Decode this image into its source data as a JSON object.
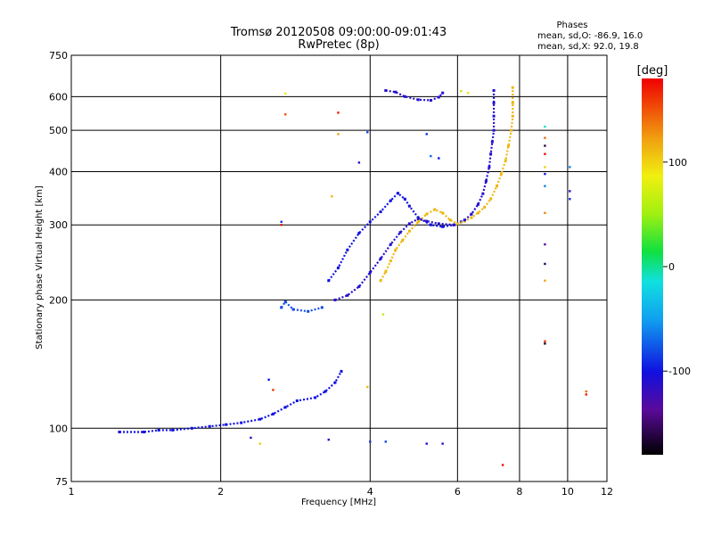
{
  "chart_data": {
    "type": "scatter",
    "title": "Tromsø 20120508 09:00:00-09:01:43",
    "subtitle": "RwPretec (8p)",
    "xlabel": "Frequency [MHz]",
    "ylabel": "Stationary phase Virtual Height [km]",
    "x_scale": "log",
    "y_scale": "log",
    "xlim": [
      1,
      12
    ],
    "ylim": [
      75,
      750
    ],
    "x_ticks": [
      1,
      2,
      4,
      6,
      8,
      10,
      12
    ],
    "y_ticks": [
      75,
      100,
      200,
      300,
      400,
      500,
      600,
      750
    ],
    "grid": true,
    "phases_box": {
      "heading": "Phases",
      "line_o": "mean, sd,O: -86.9, 16.0",
      "line_x": "mean, sd,X: 92.0, 19.8"
    },
    "colorbar": {
      "label": "[deg]",
      "min": -180,
      "max": 180,
      "ticks": [
        100,
        0,
        -100
      ]
    },
    "traces": [
      {
        "points": [
          [
            1.25,
            98
          ],
          [
            1.4,
            98
          ],
          [
            1.5,
            99
          ],
          [
            1.6,
            99
          ],
          [
            1.75,
            100
          ],
          [
            1.9,
            101
          ],
          [
            2.05,
            102
          ],
          [
            2.2,
            103
          ],
          [
            2.4,
            105
          ],
          [
            2.55,
            108
          ],
          [
            2.7,
            112
          ],
          [
            2.85,
            116
          ],
          [
            3.1,
            118
          ],
          [
            3.25,
            122
          ],
          [
            3.4,
            128
          ],
          [
            3.5,
            136
          ]
        ],
        "phase": -100
      },
      {
        "points": [
          [
            2.65,
            192
          ],
          [
            2.7,
            198
          ],
          [
            2.8,
            190
          ],
          [
            3.0,
            188
          ],
          [
            3.2,
            192
          ]
        ],
        "phase": -80
      },
      {
        "points": [
          [
            3.3,
            222
          ],
          [
            3.45,
            238
          ],
          [
            3.6,
            262
          ],
          [
            3.8,
            287
          ],
          [
            4.0,
            305
          ],
          [
            4.2,
            322
          ],
          [
            4.4,
            342
          ],
          [
            4.55,
            356
          ],
          [
            4.7,
            345
          ],
          [
            4.8,
            332
          ],
          [
            5.0,
            312
          ],
          [
            5.3,
            300
          ],
          [
            5.6,
            297
          ],
          [
            5.9,
            300
          ],
          [
            6.1,
            305
          ]
        ],
        "phase": -100
      },
      {
        "points": [
          [
            3.4,
            200
          ],
          [
            3.6,
            205
          ],
          [
            3.8,
            215
          ],
          [
            4.0,
            232
          ],
          [
            4.2,
            250
          ],
          [
            4.4,
            270
          ],
          [
            4.6,
            288
          ],
          [
            4.8,
            302
          ],
          [
            5.0,
            310
          ],
          [
            5.2,
            306
          ],
          [
            5.5,
            302
          ],
          [
            5.9,
            300
          ]
        ],
        "phase": -110
      },
      {
        "points": [
          [
            4.2,
            222
          ],
          [
            4.3,
            233
          ],
          [
            4.4,
            247
          ],
          [
            4.5,
            262
          ],
          [
            4.65,
            276
          ],
          [
            4.8,
            290
          ],
          [
            5.0,
            305
          ],
          [
            5.2,
            318
          ],
          [
            5.4,
            326
          ],
          [
            5.6,
            320
          ],
          [
            5.8,
            308
          ],
          [
            6.0,
            302
          ],
          [
            6.2,
            306
          ],
          [
            6.4,
            312
          ],
          [
            6.6,
            320
          ],
          [
            6.8,
            330
          ],
          [
            7.0,
            345
          ],
          [
            7.2,
            370
          ],
          [
            7.35,
            395
          ],
          [
            7.5,
            425
          ],
          [
            7.6,
            460
          ],
          [
            7.7,
            500
          ],
          [
            7.75,
            540
          ],
          [
            7.75,
            580
          ],
          [
            7.75,
            630
          ]
        ],
        "phase": 110
      },
      {
        "points": [
          [
            6.2,
            308
          ],
          [
            6.4,
            318
          ],
          [
            6.6,
            335
          ],
          [
            6.75,
            355
          ],
          [
            6.85,
            380
          ],
          [
            6.95,
            410
          ],
          [
            7.0,
            440
          ],
          [
            7.05,
            470
          ],
          [
            7.1,
            500
          ],
          [
            7.1,
            540
          ],
          [
            7.1,
            580
          ],
          [
            7.1,
            620
          ]
        ],
        "phase": -110
      },
      {
        "points": [
          [
            4.3,
            620
          ],
          [
            4.5,
            615
          ],
          [
            4.7,
            600
          ],
          [
            5.0,
            590
          ],
          [
            5.3,
            588
          ],
          [
            5.5,
            598
          ],
          [
            5.6,
            612
          ]
        ],
        "phase": -110
      }
    ],
    "scatter_points": [
      {
        "x": 2.7,
        "y": 610,
        "phase": 80
      },
      {
        "x": 2.7,
        "y": 545,
        "phase": 150
      },
      {
        "x": 3.45,
        "y": 550,
        "phase": 170
      },
      {
        "x": 3.45,
        "y": 490,
        "phase": 120
      },
      {
        "x": 3.8,
        "y": 420,
        "phase": -110
      },
      {
        "x": 3.95,
        "y": 495,
        "phase": -80
      },
      {
        "x": 2.65,
        "y": 305,
        "phase": -90
      },
      {
        "x": 2.65,
        "y": 300,
        "phase": 170
      },
      {
        "x": 3.35,
        "y": 350,
        "phase": 110
      },
      {
        "x": 4.25,
        "y": 185,
        "phase": 60
      },
      {
        "x": 3.95,
        "y": 125,
        "phase": 110
      },
      {
        "x": 2.5,
        "y": 130,
        "phase": -100
      },
      {
        "x": 2.55,
        "y": 123,
        "phase": 160
      },
      {
        "x": 3.3,
        "y": 94,
        "phase": -110
      },
      {
        "x": 4.0,
        "y": 93,
        "phase": -90
      },
      {
        "x": 4.3,
        "y": 93,
        "phase": -80
      },
      {
        "x": 5.2,
        "y": 92,
        "phase": -110
      },
      {
        "x": 5.6,
        "y": 92,
        "phase": -120
      },
      {
        "x": 7.4,
        "y": 82,
        "phase": 175
      },
      {
        "x": 2.4,
        "y": 92,
        "phase": 100
      },
      {
        "x": 2.3,
        "y": 95,
        "phase": -120
      },
      {
        "x": 5.3,
        "y": 435,
        "phase": -70
      },
      {
        "x": 5.5,
        "y": 430,
        "phase": -100
      },
      {
        "x": 5.2,
        "y": 490,
        "phase": -90
      },
      {
        "x": 6.1,
        "y": 618,
        "phase": 60
      },
      {
        "x": 6.3,
        "y": 612,
        "phase": 90
      },
      {
        "x": 9.0,
        "y": 510,
        "phase": -10
      },
      {
        "x": 9.0,
        "y": 480,
        "phase": 140
      },
      {
        "x": 9.0,
        "y": 460,
        "phase": -160
      },
      {
        "x": 9.0,
        "y": 440,
        "phase": 175
      },
      {
        "x": 9.0,
        "y": 410,
        "phase": 100
      },
      {
        "x": 9.0,
        "y": 395,
        "phase": -100
      },
      {
        "x": 9.0,
        "y": 370,
        "phase": -60
      },
      {
        "x": 9.0,
        "y": 320,
        "phase": 130
      },
      {
        "x": 9.0,
        "y": 270,
        "phase": -130
      },
      {
        "x": 9.0,
        "y": 243,
        "phase": -160
      },
      {
        "x": 9.0,
        "y": 222,
        "phase": 120
      },
      {
        "x": 9.0,
        "y": 160,
        "phase": 160
      },
      {
        "x": 9.0,
        "y": 158,
        "phase": -170
      },
      {
        "x": 10.1,
        "y": 410,
        "phase": -60
      },
      {
        "x": 10.1,
        "y": 360,
        "phase": -120
      },
      {
        "x": 10.1,
        "y": 345,
        "phase": -90
      },
      {
        "x": 10.9,
        "y": 122,
        "phase": 140
      },
      {
        "x": 10.9,
        "y": 120,
        "phase": 170
      }
    ]
  }
}
